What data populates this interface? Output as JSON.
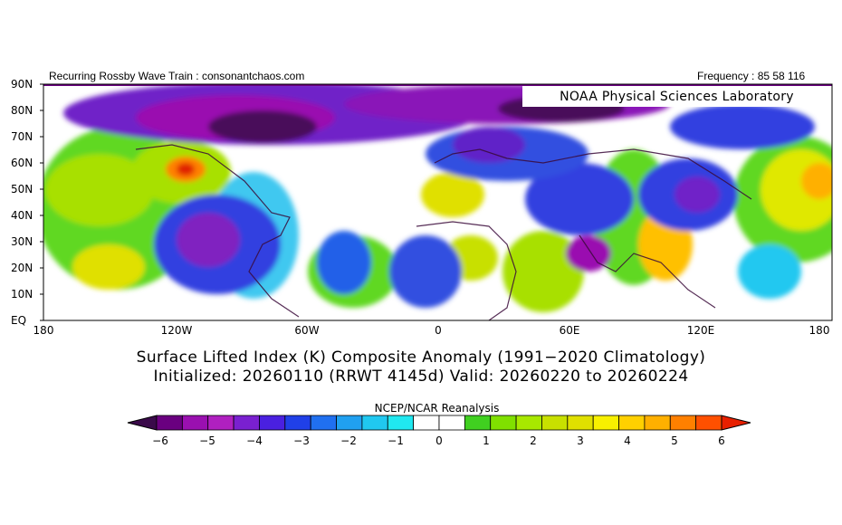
{
  "header": {
    "left": "Recurring Rossby Wave Train : consonantchaos.com",
    "right": "Frequency : 85 58 116"
  },
  "lab": "NOAA Physical Sciences Laboratory",
  "lat_labels": [
    "90N",
    "80N",
    "70N",
    "60N",
    "50N",
    "40N",
    "30N",
    "20N",
    "10N",
    "EQ"
  ],
  "lon_labels": [
    "180",
    "120W",
    "60W",
    "0",
    "60E",
    "120E",
    "180"
  ],
  "title_line1": "Surface Lifted Index (K) Composite Anomaly (1991−2020 Climatology)",
  "title_line2": "Initialized: 20260110 (RRWT 4145d) Valid: 20260220 to 20260224",
  "dataset": "NCEP/NCAR Reanalysis",
  "colorbar": {
    "labels": [
      "−6",
      "−5",
      "−4",
      "−3",
      "−2",
      "−1",
      "0",
      "1",
      "2",
      "3",
      "4",
      "5",
      "6"
    ],
    "colors": [
      "#3a0a4a",
      "#6a0080",
      "#9a10b0",
      "#b020c0",
      "#7a20d0",
      "#4a20e0",
      "#2040e8",
      "#2070f0",
      "#20a0f0",
      "#20c8f0",
      "#20e8f0",
      "#ffffff",
      "#ffffff",
      "#40d020",
      "#80e000",
      "#a8e800",
      "#c8e000",
      "#e0e000",
      "#f8f000",
      "#ffd000",
      "#ffb000",
      "#ff8000",
      "#ff5000",
      "#e82000"
    ]
  }
}
